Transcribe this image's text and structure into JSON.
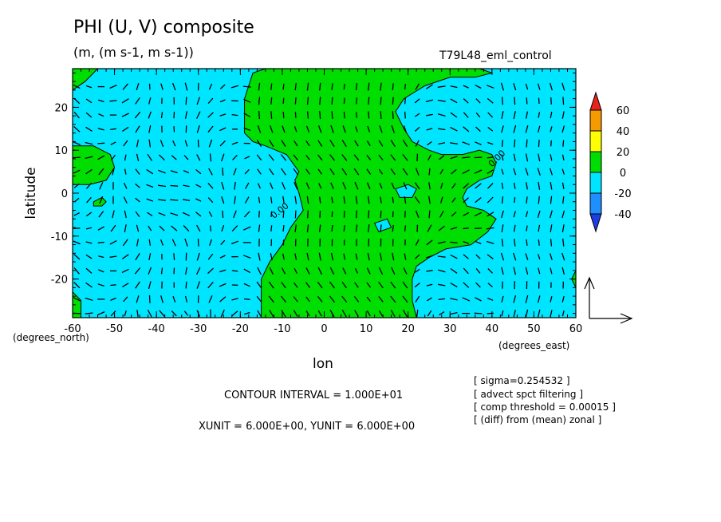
{
  "chart_data": {
    "type": "heatmap",
    "title": "PHI (U, V) composite",
    "subtitle": "(m, (m s-1, m s-1))",
    "run_label": "T79L48_eml_control",
    "xlabel": "lon",
    "ylabel": "latitude",
    "x_unit_label": "(degrees_east)",
    "y_unit_label": "(degrees_north)",
    "xlim": [
      -60,
      60
    ],
    "ylim": [
      -29,
      29
    ],
    "x_ticks": [
      -60,
      -50,
      -40,
      -30,
      -20,
      -10,
      0,
      10,
      20,
      30,
      40,
      50,
      60
    ],
    "y_ticks": [
      -20,
      -10,
      0,
      10,
      20
    ],
    "x_tick_labels": [
      "-60",
      "-50",
      "-40",
      "-30",
      "-20",
      "-10",
      "0",
      "10",
      "20",
      "30",
      "40",
      "50",
      "60"
    ],
    "y_tick_labels": [
      "-20",
      "-10",
      "0",
      "10",
      "20"
    ],
    "contour_label": "0.00",
    "colorbar": {
      "levels": [
        60,
        40,
        20,
        0,
        -20,
        -40
      ],
      "labels": [
        "60",
        "40",
        "20",
        "0",
        "-20",
        "-40"
      ],
      "colors": [
        "#e8211c",
        "#f59a00",
        "#ffff00",
        "#00dd00",
        "#00e5ff",
        "#1e8fff",
        "#1b3fe0"
      ]
    },
    "fill_colors": {
      "negative": "#00e5ff",
      "positive": "#00dd00"
    },
    "positive_regions": [
      [
        [
          -19,
          -29
        ],
        [
          -15,
          -29
        ],
        [
          -15,
          -20
        ],
        [
          -13,
          -16
        ],
        [
          -10,
          -12
        ],
        [
          -8,
          -8
        ],
        [
          -5,
          -4
        ],
        [
          -6,
          0
        ],
        [
          -7,
          3
        ],
        [
          -6,
          5
        ],
        [
          -9,
          9
        ],
        [
          -14,
          11
        ],
        [
          -17,
          12
        ],
        [
          -19,
          14
        ],
        [
          -19,
          22
        ],
        [
          -17,
          28
        ],
        [
          -14,
          29
        ],
        [
          30,
          29
        ],
        [
          37,
          29
        ],
        [
          40,
          28
        ],
        [
          36,
          27
        ],
        [
          30,
          27
        ],
        [
          24,
          25
        ],
        [
          19,
          22
        ],
        [
          17,
          19
        ],
        [
          19,
          15
        ],
        [
          21,
          12
        ],
        [
          25,
          10
        ],
        [
          28,
          9
        ],
        [
          33,
          9
        ],
        [
          37,
          10
        ],
        [
          40,
          9
        ],
        [
          41,
          7
        ],
        [
          40,
          4
        ],
        [
          37,
          3
        ],
        [
          34,
          1
        ],
        [
          33,
          -1
        ],
        [
          34,
          -3
        ],
        [
          38,
          -4
        ],
        [
          41,
          -6
        ],
        [
          39,
          -9
        ],
        [
          35,
          -12
        ],
        [
          29,
          -13
        ],
        [
          25,
          -15
        ],
        [
          22,
          -17
        ],
        [
          21,
          -20
        ],
        [
          21,
          -25
        ],
        [
          22,
          -29
        ]
      ],
      [
        [
          -60,
          11
        ],
        [
          -55,
          11
        ],
        [
          -51,
          9
        ],
        [
          -50,
          6
        ],
        [
          -52,
          3
        ],
        [
          -56,
          2
        ],
        [
          -60,
          2
        ]
      ],
      [
        [
          -60,
          -23
        ],
        [
          -58,
          -25
        ],
        [
          -58,
          -29
        ],
        [
          -60,
          -29
        ]
      ],
      [
        [
          60,
          -18
        ],
        [
          59,
          -20
        ],
        [
          60,
          -22
        ]
      ],
      [
        [
          -60,
          29
        ],
        [
          -54,
          29
        ],
        [
          -57,
          26
        ],
        [
          -60,
          24
        ]
      ]
    ],
    "negative_islands": [
      [
        [
          17,
          1
        ],
        [
          20,
          2
        ],
        [
          22,
          1
        ],
        [
          21,
          -1
        ],
        [
          18,
          -1
        ]
      ],
      [
        [
          12,
          -7
        ],
        [
          15,
          -6
        ],
        [
          16,
          -8
        ],
        [
          13,
          -9
        ]
      ]
    ],
    "small_positive_islands": [
      [
        [
          -55,
          -2
        ],
        [
          -53,
          -1
        ],
        [
          -52,
          -2
        ],
        [
          -53,
          -3
        ],
        [
          -55,
          -3
        ]
      ]
    ],
    "vector_field_shown": true,
    "reference_vector": {
      "xunit": 6.0,
      "yunit": 6.0
    },
    "contour_interval_text": "CONTOUR INTERVAL = 1.000E+01",
    "unit_text": "XUNIT = 6.000E+00, YUNIT = 6.000E+00",
    "info_lines": [
      "[ sigma=0.254532 ]",
      "[ advect spct filtering ]",
      "[ comp threshold = 0.00015 ]",
      "[ (diff) from (mean) zonal ]"
    ]
  }
}
